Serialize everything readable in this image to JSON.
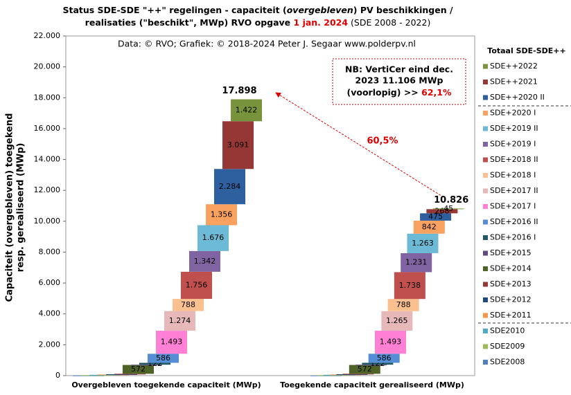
{
  "chart_data": {
    "type": "waterfall",
    "title_parts": [
      "Status SDE-SDE \"++\" regelingen - capaciteit (",
      "overgebleven",
      ") PV beschikkingen  /",
      "realisaties (\"beschikt\", MWp) RVO opgave ",
      "1 jan. 2024",
      " (SDE 2008 - 2022)"
    ],
    "credit": "Data: © RVO;  Grafiek:  © 2018-2024 Peter J. Segaar www.polderpv.nl",
    "ylabel": [
      "Capaciteit (overgebleven) toegekend",
      "resp. gerealiseerd (MWp)"
    ],
    "legend_title": "Totaal SDE-SDE++",
    "note": [
      "NB: VertiCer eind dec.",
      "2023 11.106 MWp",
      "(voorlopig)  >> ",
      "62,1%"
    ],
    "arrow_label": "60,5%",
    "categories": [
      "Overgebleven toegekende capaciteit (MWp)",
      "Toegekende capaciteit gerealiseerd (MWp)"
    ],
    "totals": [
      {
        "value": 17898,
        "label": "17.898"
      },
      {
        "value": 10826,
        "label": "10.826"
      }
    ],
    "ylim": [
      0,
      22000
    ],
    "yticks": [
      {
        "value": 0,
        "label": "0"
      },
      {
        "value": 2000,
        "label": "2.000"
      },
      {
        "value": 4000,
        "label": "4.000"
      },
      {
        "value": 6000,
        "label": "6.000"
      },
      {
        "value": 8000,
        "label": "8.000"
      },
      {
        "value": 10000,
        "label": "10.000"
      },
      {
        "value": 12000,
        "label": "12.000"
      },
      {
        "value": 14000,
        "label": "14.000"
      },
      {
        "value": 16000,
        "label": "16.000"
      },
      {
        "value": 18000,
        "label": "18.000"
      },
      {
        "value": 20000,
        "label": "20.000"
      },
      {
        "value": 22000,
        "label": "22.000"
      }
    ],
    "series": [
      {
        "name": "SDE2008",
        "color": "#4f81bd",
        "values": [
          10,
          10
        ],
        "value_labels": [
          null,
          null
        ]
      },
      {
        "name": "SDE2009",
        "color": "#9bbb59",
        "values": [
          20,
          20
        ],
        "value_labels": [
          null,
          null
        ]
      },
      {
        "name": "SDE2010",
        "color": "#4bacc6",
        "values": [
          25,
          25
        ],
        "value_labels": [
          null,
          null
        ]
      },
      {
        "name": "SDE+2011",
        "color": "#f79646",
        "values": [
          20,
          20
        ],
        "value_labels": [
          null,
          null
        ]
      },
      {
        "name": "SDE+2012",
        "color": "#1f497d",
        "values": [
          15,
          15
        ],
        "value_labels": [
          null,
          null
        ]
      },
      {
        "name": "SDE+2013",
        "color": "#953735",
        "values": [
          30,
          30
        ],
        "value_labels": [
          null,
          null
        ]
      },
      {
        "name": "SDE+2014",
        "color": "#4f6228",
        "values": [
          572,
          572
        ],
        "value_labels": [
          "572",
          "572"
        ]
      },
      {
        "name": "SDE+2015",
        "color": "#604a7b",
        "values": [
          16,
          18
        ],
        "value_labels": [
          null,
          null
        ]
      },
      {
        "name": "SDE+2016 I",
        "color": "#215968",
        "values": [
          122,
          122
        ],
        "value_labels": [
          "122",
          "122"
        ]
      },
      {
        "name": "SDE+2016 II",
        "color": "#558ed5",
        "values": [
          586,
          586
        ],
        "value_labels": [
          "586",
          "586"
        ]
      },
      {
        "name": "SDE+2017 I",
        "color": "#ff80d5",
        "values": [
          1493,
          1493
        ],
        "value_labels": [
          "1.493",
          "1.493"
        ]
      },
      {
        "name": "SDE+2017 II",
        "color": "#e6b9b8",
        "values": [
          1274,
          1265
        ],
        "value_labels": [
          "1.274",
          "1.265"
        ]
      },
      {
        "name": "SDE+2018 I",
        "color": "#fac090",
        "values": [
          788,
          788
        ],
        "value_labels": [
          "788",
          "788"
        ]
      },
      {
        "name": "SDE+2018 II",
        "color": "#c0504d",
        "values": [
          1756,
          1738
        ],
        "value_labels": [
          "1.756",
          "1.738"
        ]
      },
      {
        "name": "SDE+2019 I",
        "color": "#8064a2",
        "values": [
          1342,
          1231
        ],
        "value_labels": [
          "1.342",
          "1.231"
        ]
      },
      {
        "name": "SDE+2019 II",
        "color": "#6cbad6",
        "values": [
          1676,
          1263
        ],
        "value_labels": [
          "1.676",
          "1.263"
        ]
      },
      {
        "name": "SDE+2020 I",
        "color": "#f9a15e",
        "values": [
          1356,
          842
        ],
        "value_labels": [
          "1.356",
          "842"
        ]
      },
      {
        "name": "SDE++2020 II",
        "color": "#2e5f9e",
        "values": [
          2284,
          475
        ],
        "value_labels": [
          "2.284",
          "475"
        ]
      },
      {
        "name": "SDE++2021",
        "color": "#953735",
        "values": [
          3091,
          268
        ],
        "value_labels": [
          "3.091",
          "268"
        ]
      },
      {
        "name": "SDE++2022",
        "color": "#77933c",
        "values": [
          1422,
          45
        ],
        "value_labels": [
          "1.422",
          "45"
        ]
      }
    ]
  }
}
